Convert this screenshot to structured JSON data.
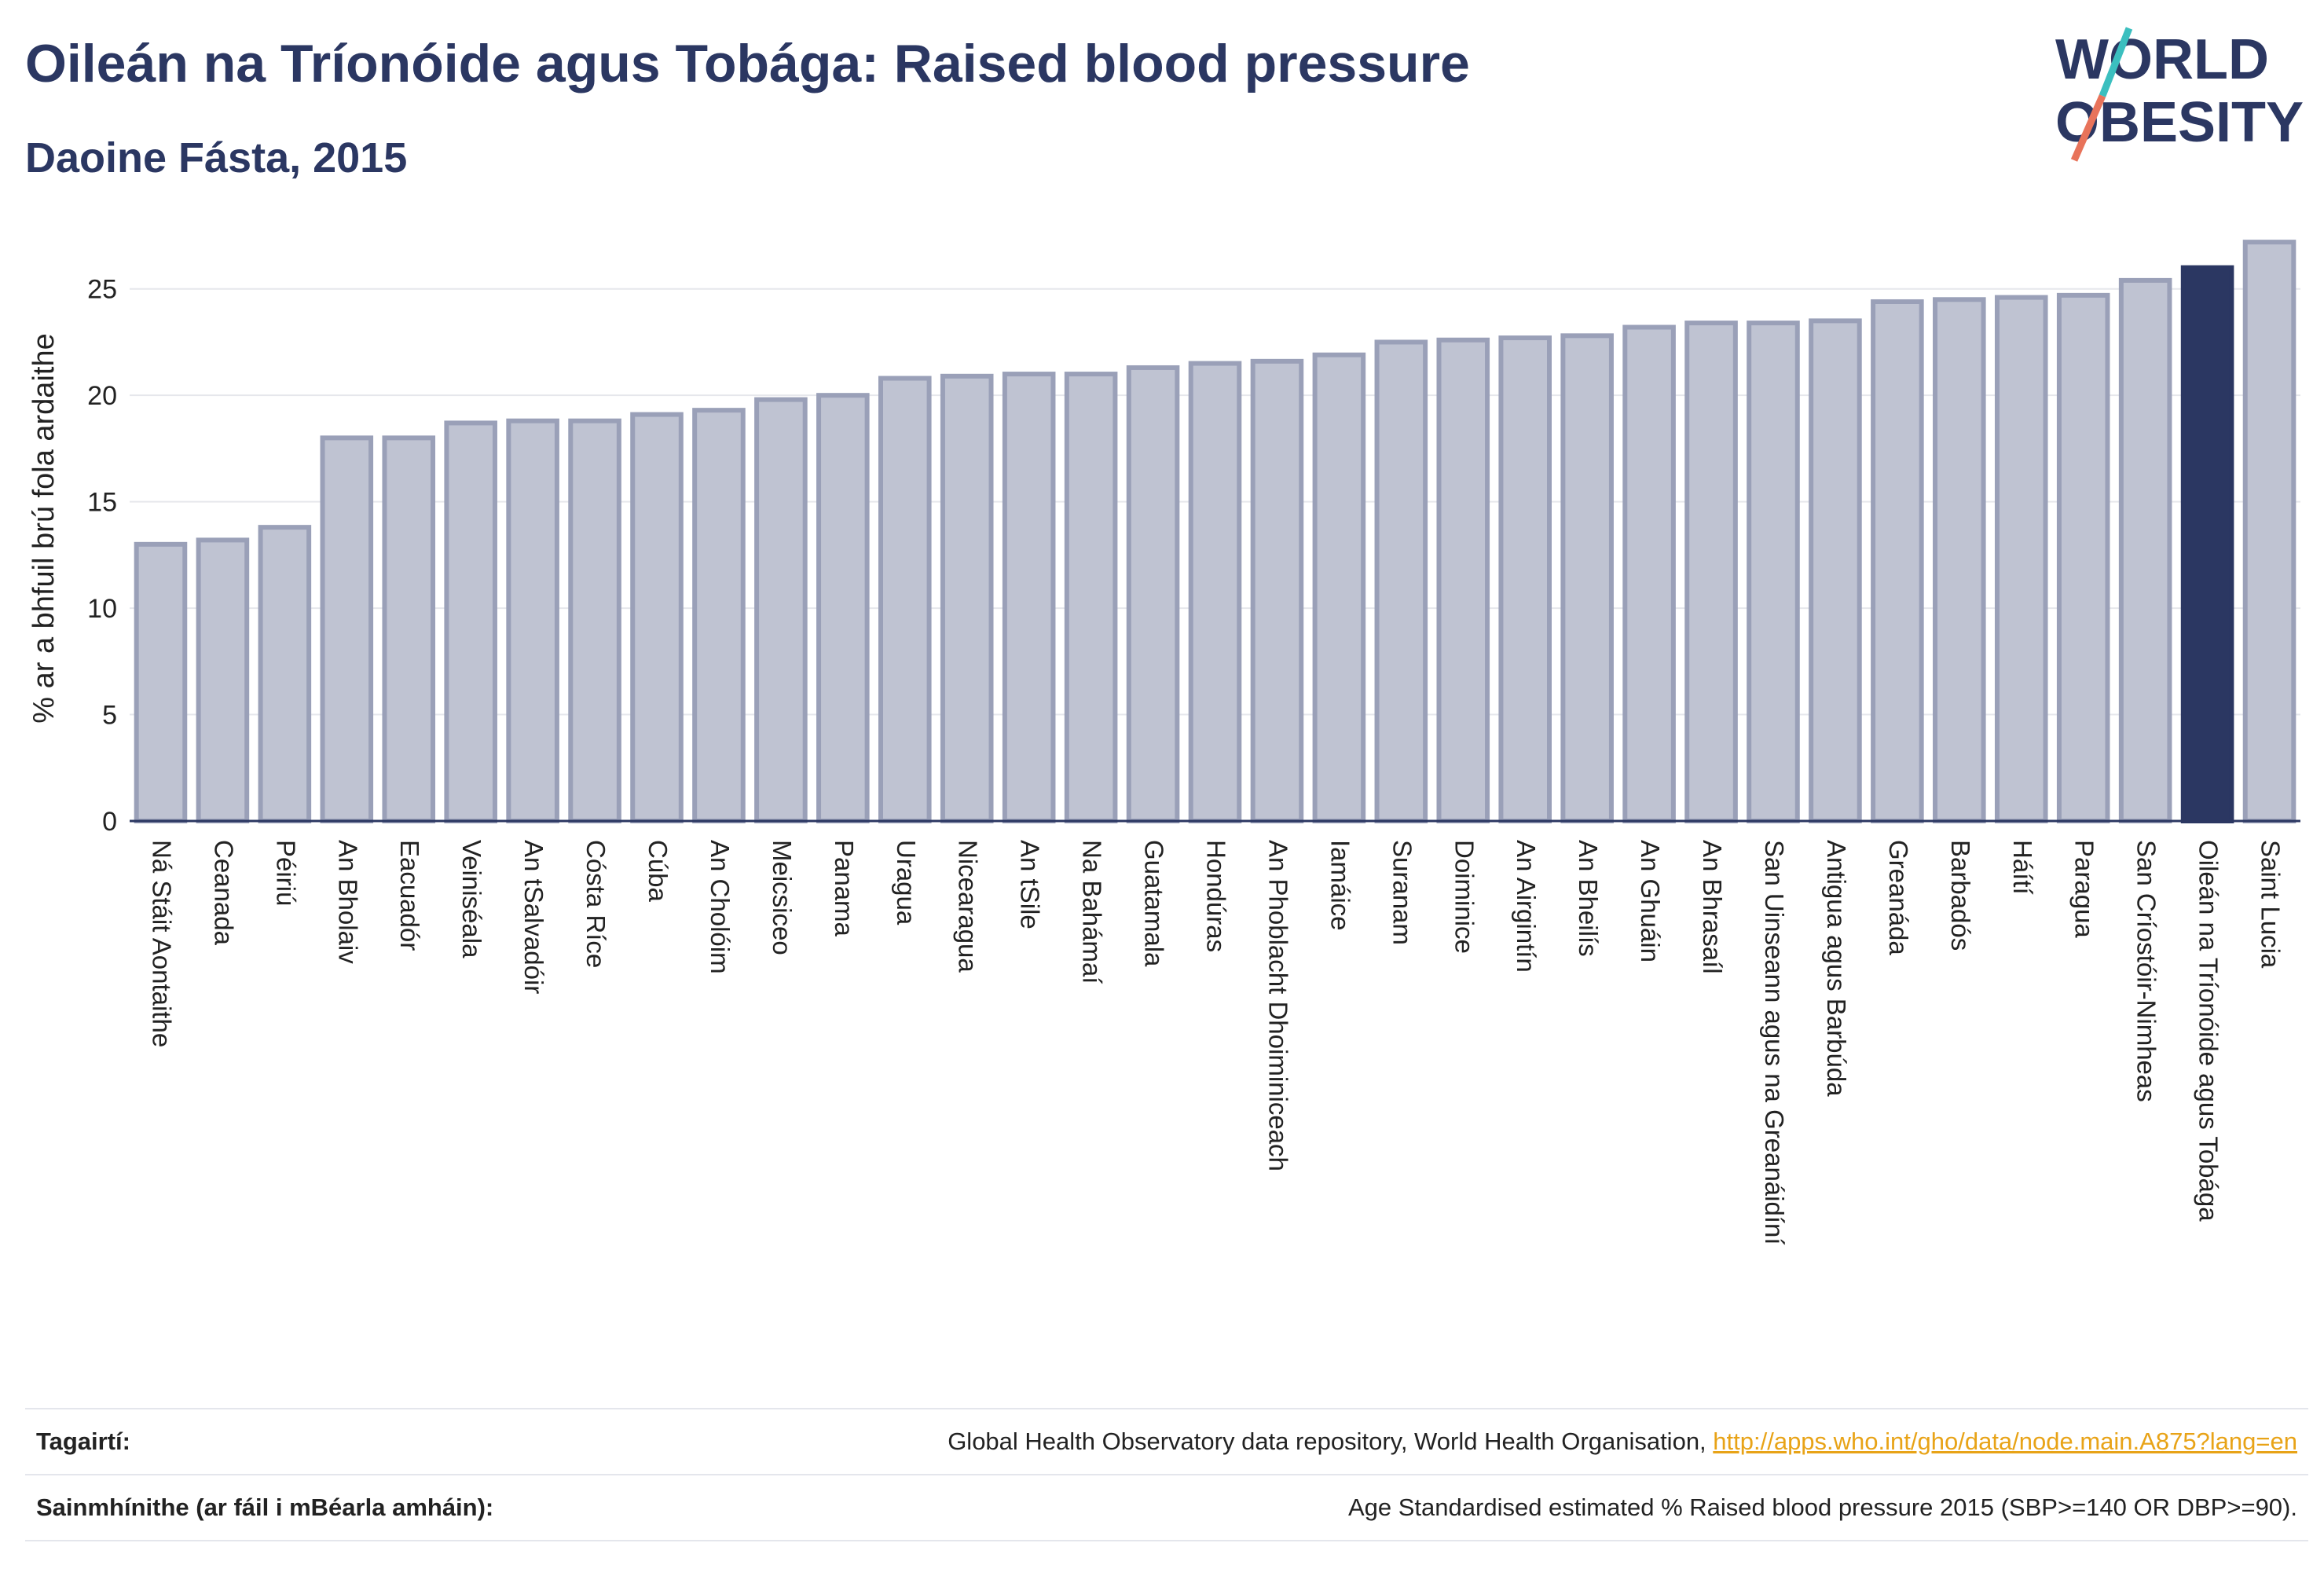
{
  "header": {
    "title": "Oileán na Tríonóide agus Tobága: Raised blood pressure",
    "subtitle": "Daoine Fásta, 2015"
  },
  "logo": {
    "line1": "WORLD",
    "line2": "OBESITY",
    "colors": {
      "text": "#2b3762",
      "slash_teal": "#3bbfbf",
      "slash_coral": "#e8735a"
    }
  },
  "colors": {
    "bar_fill": "#bfc3d2",
    "bar_stroke": "#9aa0b8",
    "highlight_fill": "#2b3762",
    "axis": "#2b3762",
    "grid": "#e6e7ec",
    "text": "#222222"
  },
  "chart_data": {
    "type": "bar",
    "ylabel": "% ar a bhfuil brú fola ardaithe",
    "ylim": [
      0,
      27.5
    ],
    "yticks": [
      0,
      5,
      10,
      15,
      20,
      25
    ],
    "grid": true,
    "highlight": "Oileán na Tríonóide agus Tobága",
    "categories": [
      "Ná Stáit Aontaithe",
      "Ceanada",
      "Péiriú",
      "An Bholaiv",
      "Eacuadór",
      "Veiniséala",
      "An tSalvadóir",
      "Cósta Ríce",
      "Cúba",
      "An Cholóim",
      "Meicsiceo",
      "Panama",
      "Uragua",
      "Nicearagua",
      "An tSile",
      "Na Bahámaí",
      "Guatamala",
      "Hondúras",
      "An Phoblacht Dhoiminiceach",
      "Iamáice",
      "Suranam",
      "Doiminice",
      "An Airgintín",
      "An Bheilís",
      "An Ghuáin",
      "An Bhrasaíl",
      "San Uinseann agus na Greanáidíní",
      "Antigua agus Barbúda",
      "Greanáda",
      "Barbadós",
      "Háítí",
      "Paragua",
      "San Críostóir-Nimheas",
      "Oileán na Tríonóide agus Tobága",
      "Saint Lucia"
    ],
    "values": [
      13.0,
      13.2,
      13.8,
      18.0,
      18.0,
      18.7,
      18.8,
      18.8,
      19.1,
      19.3,
      19.8,
      20.0,
      20.8,
      20.9,
      21.0,
      21.0,
      21.3,
      21.5,
      21.6,
      21.9,
      22.5,
      22.6,
      22.7,
      22.8,
      23.2,
      23.4,
      23.4,
      23.5,
      24.4,
      24.5,
      24.6,
      24.7,
      25.4,
      26.0,
      27.2
    ]
  },
  "footer": {
    "references_label": "Tagairtí:",
    "references_text": "Global Health Observatory data repository, World Health Organisation, ",
    "references_link": "http://apps.who.int/gho/data/node.main.A875?lang=en",
    "definitions_label": "Sainmhínithe (ar fáil i mBéarla amháin):",
    "definitions_text": "Age Standardised estimated % Raised blood pressure 2015 (SBP>=140 OR DBP>=90)."
  }
}
